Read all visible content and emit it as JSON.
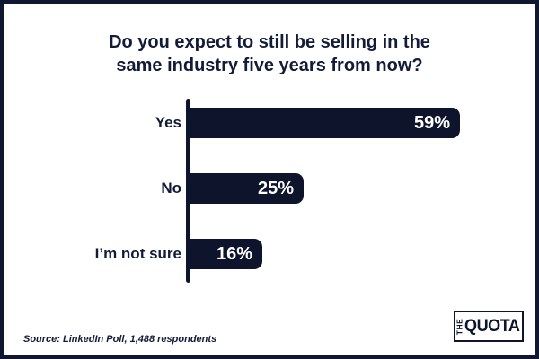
{
  "title": {
    "line1": "Do you expect to still be selling in the",
    "line2": "same industry five years from now?"
  },
  "chart_data": {
    "type": "bar",
    "orientation": "horizontal",
    "title": "Do you expect to still be selling in the same industry five years from now?",
    "categories": [
      "Yes",
      "No",
      "I’m not sure"
    ],
    "values": [
      59,
      25,
      16
    ],
    "value_labels": [
      "59%",
      "25%",
      "16%"
    ],
    "xlim": [
      0,
      100
    ],
    "grid": false,
    "legend": false,
    "axis_line": true,
    "bar_color": "#0e142b",
    "value_text_color": "#ffffff",
    "label_text_color": "#131b38"
  },
  "footer": {
    "source": "Source: LinkedIn Poll, 1,488 respondents"
  },
  "logo": {
    "the": "THE",
    "quota": "QUOTA"
  },
  "colors": {
    "accent_navy": "#0e142b",
    "border_navy": "#101831",
    "background": "#ffffff"
  }
}
